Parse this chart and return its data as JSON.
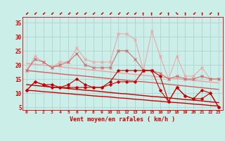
{
  "x": [
    0,
    1,
    2,
    3,
    4,
    5,
    6,
    7,
    8,
    9,
    10,
    11,
    12,
    13,
    14,
    15,
    16,
    17,
    18,
    19,
    20,
    21,
    22,
    23
  ],
  "series1_rafales": [
    18,
    23,
    21,
    19,
    21,
    21,
    26,
    22,
    21,
    21,
    21,
    31,
    31,
    29,
    18,
    32,
    23,
    15,
    23,
    16,
    16,
    19,
    15,
    15
  ],
  "series2_upper": [
    18,
    22,
    21,
    19,
    20,
    21,
    24,
    20,
    19,
    19,
    19,
    25,
    25,
    22,
    18,
    18,
    17,
    15,
    16,
    15,
    15,
    16,
    15,
    15
  ],
  "series3_lower": [
    11,
    14,
    13,
    13,
    12,
    13,
    15,
    13,
    12,
    12,
    14,
    18,
    18,
    18,
    18,
    18,
    16,
    7,
    12,
    9,
    8,
    11,
    10,
    5
  ],
  "series4_mean": [
    11,
    14,
    13,
    12,
    12,
    12,
    12,
    12,
    12,
    12,
    13,
    14,
    14,
    14,
    18,
    18,
    11,
    7,
    12,
    9,
    8,
    8,
    10,
    5
  ],
  "trend1": [
    20.5,
    20.2,
    19.9,
    19.6,
    19.3,
    19.0,
    18.7,
    18.4,
    18.1,
    17.8,
    17.5,
    17.2,
    16.9,
    16.6,
    16.3,
    16.0,
    15.7,
    15.4,
    15.1,
    14.8,
    14.5,
    14.2,
    13.9,
    13.6
  ],
  "trend2": [
    18.0,
    17.7,
    17.4,
    17.1,
    16.8,
    16.5,
    16.3,
    16.0,
    15.7,
    15.4,
    15.1,
    14.8,
    14.5,
    14.2,
    14.0,
    13.7,
    13.4,
    13.1,
    12.8,
    12.5,
    12.2,
    11.9,
    11.6,
    11.3
  ],
  "trend3": [
    13.0,
    12.7,
    12.4,
    12.1,
    11.9,
    11.6,
    11.3,
    11.0,
    10.8,
    10.5,
    10.2,
    9.9,
    9.7,
    9.4,
    9.1,
    8.8,
    8.6,
    8.3,
    8.0,
    7.7,
    7.5,
    7.2,
    6.9,
    6.6
  ],
  "trend4": [
    11.0,
    10.8,
    10.5,
    10.3,
    10.0,
    9.8,
    9.5,
    9.3,
    9.0,
    8.8,
    8.6,
    8.3,
    8.1,
    7.8,
    7.6,
    7.3,
    7.1,
    6.8,
    6.6,
    6.4,
    6.1,
    5.9,
    5.6,
    5.4
  ],
  "wind_symbols": [
    "⬋",
    "⬋",
    "⬋",
    "⬋",
    "⬋",
    "⬋",
    "⬋",
    "⬋",
    "⬋",
    "⬋",
    "⬋",
    "⬋",
    "⬋",
    "⬋",
    "⬆",
    "⬆",
    "⬋",
    "⬆",
    "⬊",
    "⬆",
    "⬋",
    "⬆",
    "⬋",
    "⬆"
  ],
  "color_light_pink": "#f0a0a0",
  "color_medium_pink": "#d06060",
  "color_dark_red": "#bb0000",
  "color_red": "#cc0000",
  "background": "#cceee8",
  "grid_color": "#aacccc",
  "xlabel": "Vent moyen/en rafales ( km/h )",
  "yticks": [
    5,
    10,
    15,
    20,
    25,
    30,
    35
  ],
  "xticks": [
    0,
    1,
    2,
    3,
    4,
    5,
    6,
    7,
    8,
    9,
    10,
    11,
    12,
    13,
    14,
    15,
    16,
    17,
    18,
    19,
    20,
    21,
    22,
    23
  ],
  "ylim_min": 4,
  "ylim_max": 37
}
